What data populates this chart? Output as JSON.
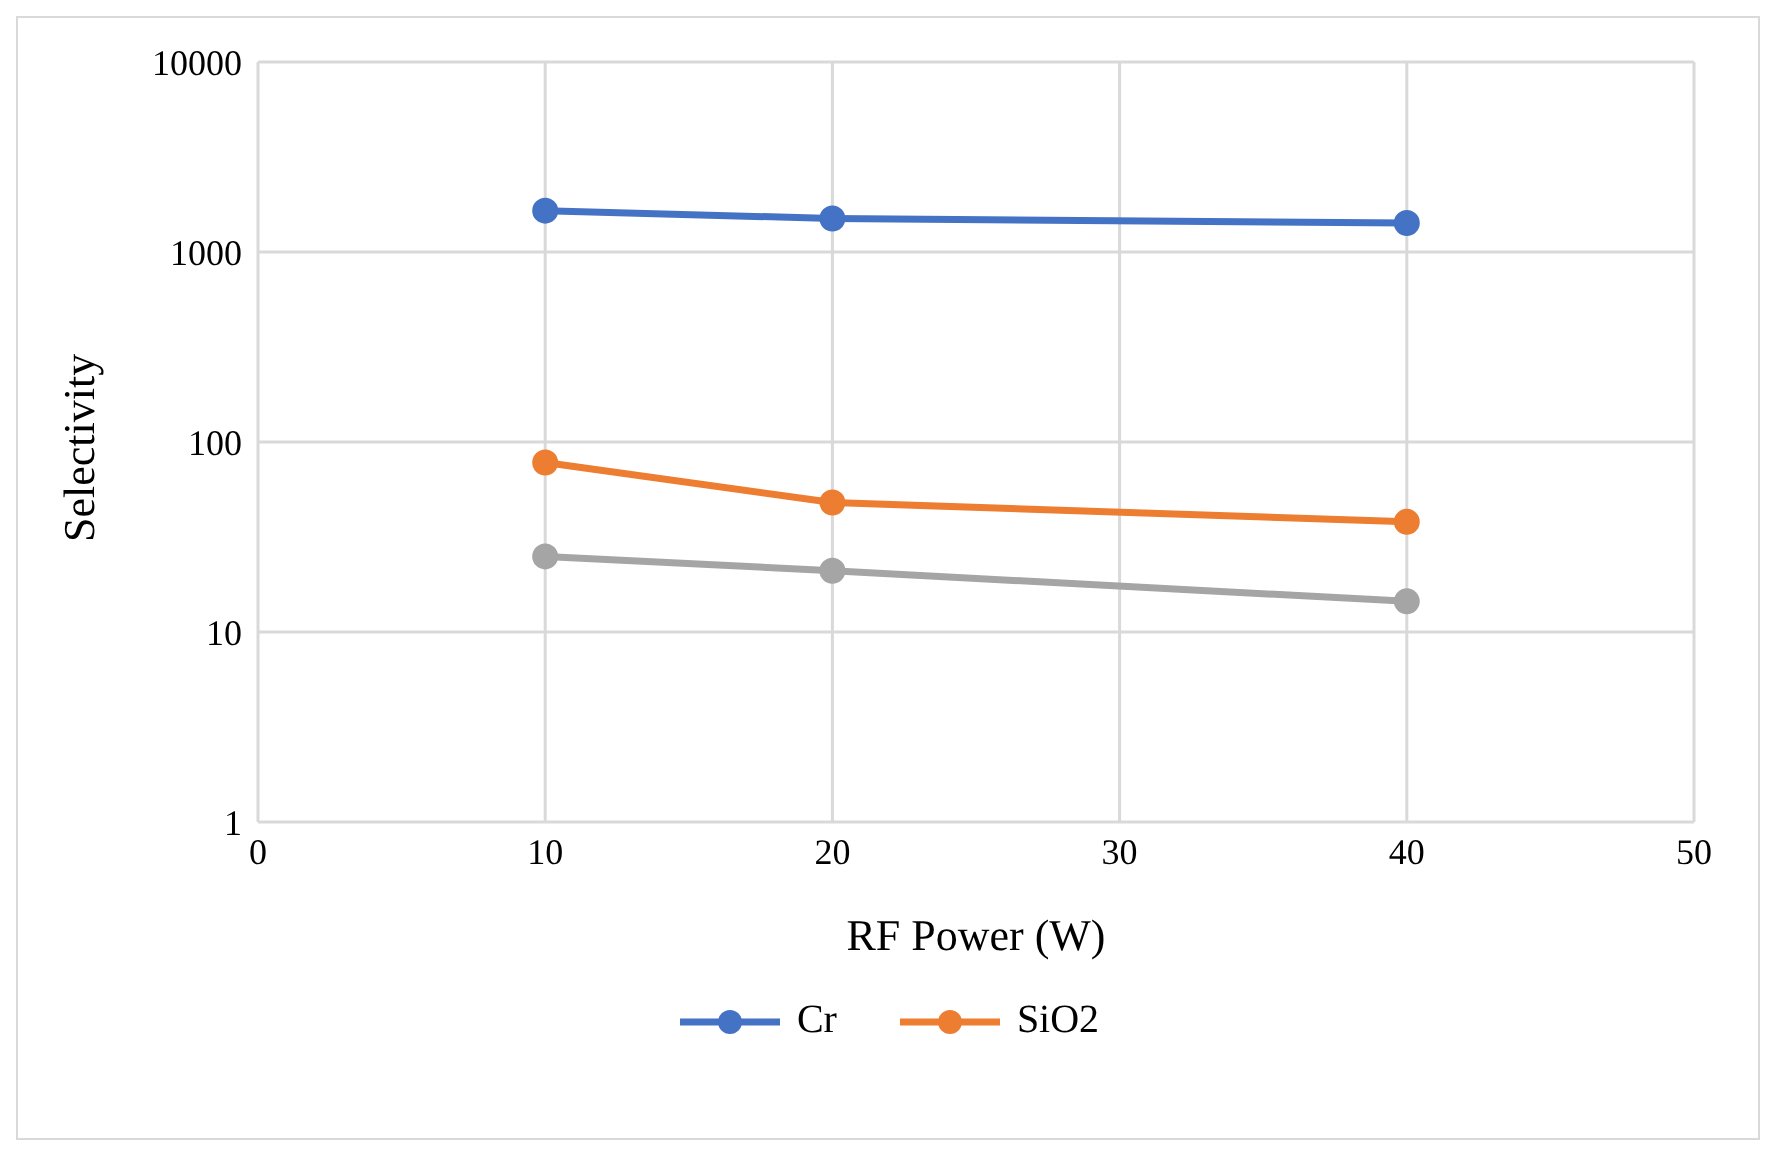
{
  "chart_data": {
    "type": "line",
    "xlabel": "RF Power (W)",
    "ylabel": "Selectivity",
    "x": [
      10,
      20,
      40
    ],
    "series": [
      {
        "name": "Cr",
        "color": "#4472c4",
        "values": [
          1650,
          1500,
          1420
        ]
      },
      {
        "name": "SiO2",
        "color": "#ed7d31",
        "values": [
          78,
          48,
          38
        ]
      },
      {
        "color": "#a5a5a5",
        "values": [
          25,
          21,
          14.5
        ]
      }
    ],
    "xlim": [
      0,
      50
    ],
    "xticks": [
      0,
      10,
      20,
      30,
      40,
      50
    ],
    "ylim": [
      1,
      10000
    ],
    "yticks": [
      1,
      10,
      100,
      1000,
      10000
    ],
    "log": "y",
    "grid": true,
    "legend": "bottom",
    "marker": "circle",
    "line_style": "solid"
  }
}
